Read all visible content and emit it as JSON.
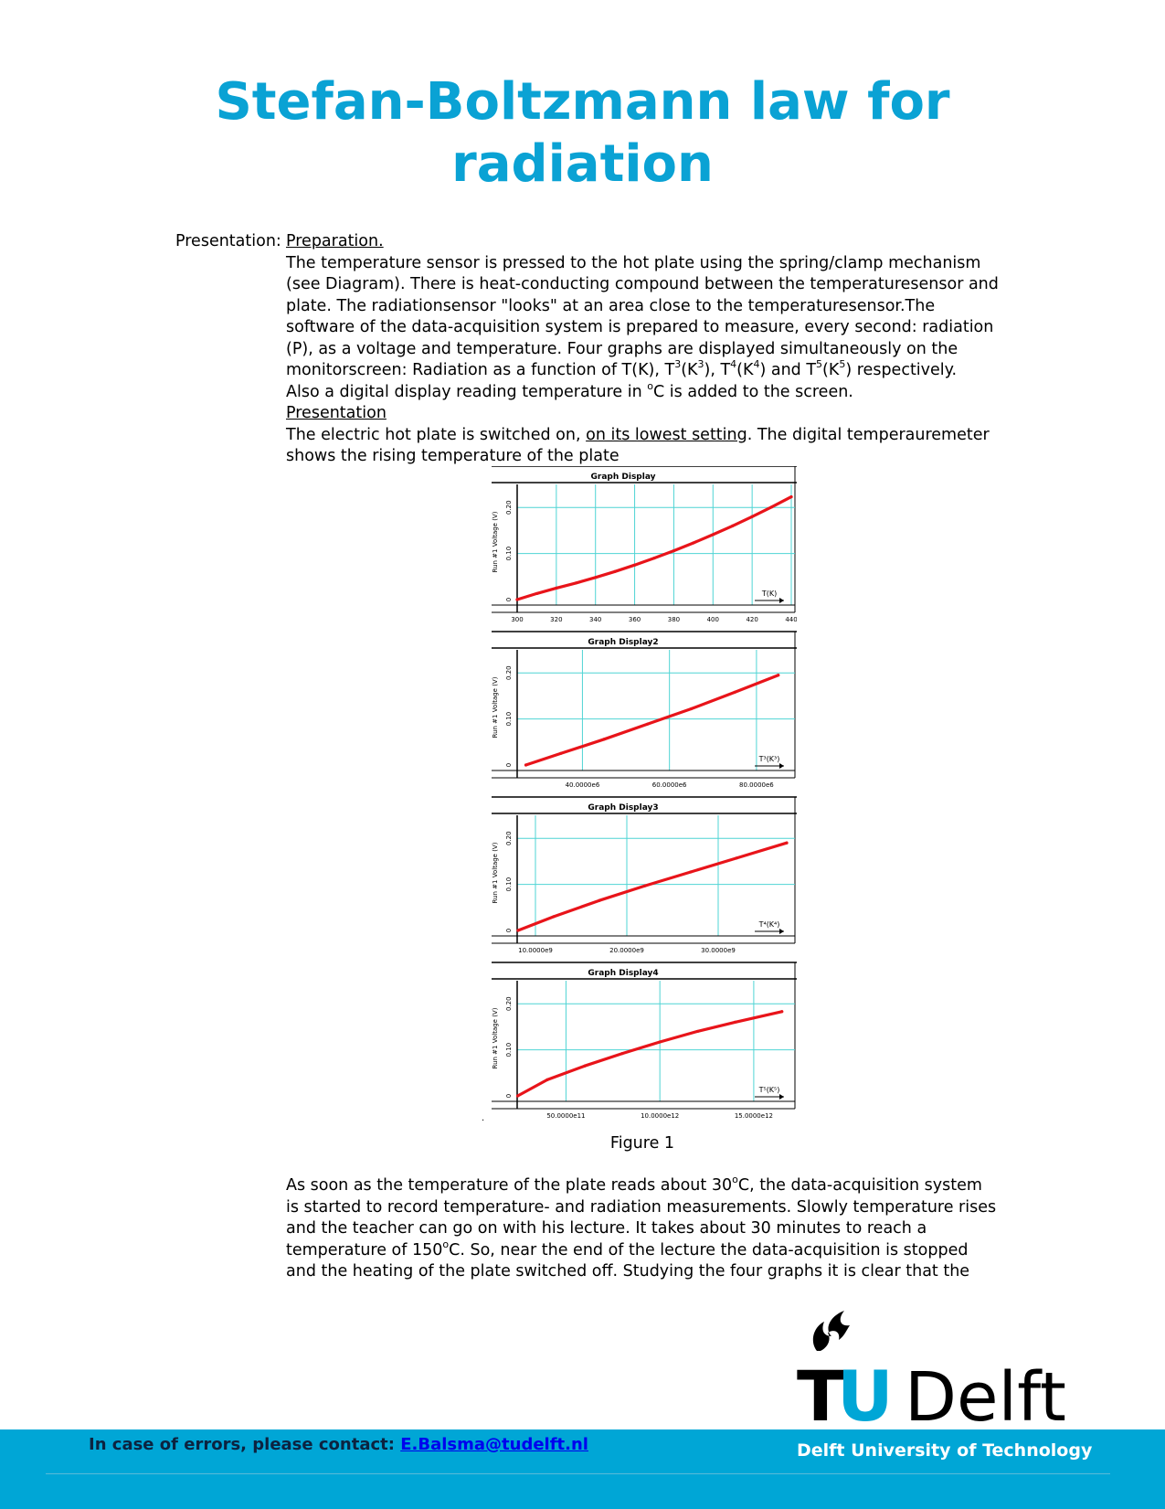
{
  "title": {
    "line1": "Stefan-Boltzmann law for",
    "line2": "radiation"
  },
  "presentation_label": "Presentation:",
  "preparation_heading": "Preparation.",
  "preparation_text": {
    "l1": "The temperature sensor is pressed to the hot plate using the spring/clamp mechanism",
    "l2": "(see Diagram). There is heat-conducting compound between the temperaturesensor and",
    "l3": "plate. The radiationsensor \"looks\" at an area close to the temperaturesensor.The",
    "l4": "software of the data-acquisition system is prepared to measure, every second: radiation",
    "l5": "(P), as a voltage and temperature. Four graphs are displayed simultaneously on the",
    "l6a": "monitorscreen: Radiation as a function of T(K), T",
    "l6b": "(K",
    "l6c": "), T",
    "l6d": "(K",
    "l6e": ") and T",
    "l6f": "(K",
    "l6g": ") respectively.",
    "sup3": "3",
    "sup4": "4",
    "sup5": "5",
    "l7a": "Also a digital display reading temperature in ",
    "l7deg": "o",
    "l7b": "C is added to the screen."
  },
  "presentation_heading": "Presentation",
  "presentation_text": {
    "l1a": "The electric hot plate is switched on, ",
    "l1u": "on its lowest setting",
    "l1b": ". The digital temperauremeter",
    "l2": "shows the rising temperature of the plate"
  },
  "chart_data": [
    {
      "type": "line",
      "title": "Graph Display",
      "ylabel": "Run #1 Voltage (V)",
      "xlabel": "T(K)",
      "xlim": [
        300,
        440
      ],
      "ylim": [
        0,
        0.25
      ],
      "x_ticks": [
        "300",
        "320",
        "340",
        "360",
        "380",
        "400",
        "420",
        "440"
      ],
      "y_ticks": [
        "0",
        "0.10",
        "0.20"
      ],
      "series": [
        {
          "x": [
            300,
            310,
            320,
            330,
            340,
            350,
            360,
            370,
            380,
            390,
            400,
            410,
            420,
            430,
            440
          ],
          "y": [
            0.0,
            0.013,
            0.025,
            0.036,
            0.048,
            0.061,
            0.075,
            0.09,
            0.106,
            0.123,
            0.141,
            0.16,
            0.18,
            0.201,
            0.223
          ]
        }
      ]
    },
    {
      "type": "line",
      "title": "Graph Display2",
      "ylabel": "Run #1 Voltage (V)",
      "xlabel": "T³(K³)",
      "xlim": [
        25000000,
        88000000
      ],
      "ylim": [
        0,
        0.25
      ],
      "x_ticks": [
        "40.0000e6",
        "60.0000e6",
        "80.0000e6"
      ],
      "x_tick_values": [
        40000000,
        60000000,
        80000000
      ],
      "y_ticks": [
        "0",
        "0.10",
        "0.20"
      ],
      "series": [
        {
          "x": [
            27000000,
            35000000,
            45000000,
            55000000,
            65000000,
            75000000,
            85000000
          ],
          "y": [
            0.0,
            0.025,
            0.056,
            0.089,
            0.122,
            0.158,
            0.195
          ]
        }
      ]
    },
    {
      "type": "line",
      "title": "Graph Display3",
      "ylabel": "Run #1 Voltage (V)",
      "xlabel": "T⁴(K⁴)",
      "xlim": [
        8000000000,
        38000000000
      ],
      "ylim": [
        0,
        0.25
      ],
      "x_ticks": [
        "10.0000e9",
        "20.0000e9",
        "30.0000e9"
      ],
      "x_tick_values": [
        10000000000,
        20000000000,
        30000000000
      ],
      "y_ticks": [
        "0",
        "0.10",
        "0.20"
      ],
      "series": [
        {
          "x": [
            8100000000,
            12000000000,
            17000000000,
            22000000000,
            27000000000,
            32000000000,
            37500000000
          ],
          "y": [
            0.0,
            0.03,
            0.065,
            0.097,
            0.127,
            0.157,
            0.19
          ]
        }
      ]
    },
    {
      "type": "line",
      "title": "Graph Display4",
      "ylabel": "Run #1 Voltage (V)",
      "xlabel": "T⁵(K⁵)",
      "xlim": [
        2400000000000,
        17000000000000
      ],
      "ylim": [
        0,
        0.25
      ],
      "x_ticks": [
        "50.0000e11",
        "10.0000e12",
        "15.0000e12"
      ],
      "x_tick_values": [
        5000000000000,
        10000000000000,
        15000000000000
      ],
      "y_ticks": [
        "0",
        "0.10",
        "0.20"
      ],
      "series": [
        {
          "x": [
            2430000000000,
            4000000000000,
            6000000000000,
            8000000000000,
            10000000000000,
            12000000000000,
            14000000000000,
            16500000000000
          ],
          "y": [
            0.0,
            0.035,
            0.065,
            0.092,
            0.117,
            0.14,
            0.16,
            0.183
          ]
        }
      ]
    }
  ],
  "figure_caption": "Figure 1",
  "after_text": {
    "l1a": "As soon as the temperature of the plate reads about 30",
    "l1deg": "o",
    "l1b": "C, the data-acquisition system",
    "l2": "is started to record temperature- and radiation measurements. Slowly temperature rises",
    "l3": "and the teacher can go on with his lecture. It takes about 30 minutes to reach a",
    "l4a": "temperature of 150",
    "l4deg": "o",
    "l4b": "C. So, near the end of the lecture the data-acquisition is stopped",
    "l5": "and the heating of the plate switched off. Studying the four graphs it is clear that the"
  },
  "logo": {
    "tu": "TU",
    "delft": "Delft"
  },
  "footer": {
    "contact_label": "In case of errors, please contact:",
    "contact_email": "E.Balsma@tudelft.nl",
    "university": "Delft University of Technology"
  },
  "colors": {
    "title": "#0aa2d4",
    "footer": "#00a6d6",
    "curve": "#e8141a",
    "grid": "#4fd4d4"
  }
}
